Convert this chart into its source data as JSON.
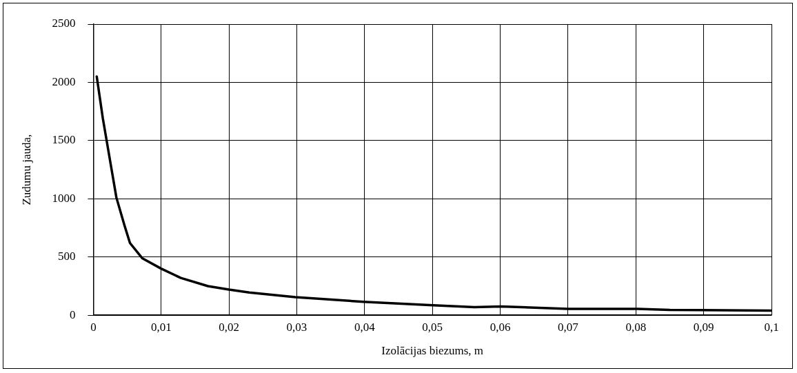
{
  "chart_data": {
    "type": "line",
    "xlabel": "Izolācijas biezums, m",
    "ylabel": "Zudumu jauda,",
    "series": [
      {
        "color": "#000000",
        "x": [
          0.0005,
          0.0014,
          0.0034,
          0.0046,
          0.0054,
          0.0072,
          0.01,
          0.0129,
          0.0169,
          0.02,
          0.023,
          0.0298,
          0.0398,
          0.0501,
          0.0562,
          0.0601,
          0.07,
          0.0803,
          0.085,
          0.1
        ],
        "values": [
          2050,
          1690,
          1010,
          770,
          620,
          490,
          400,
          320,
          250,
          220,
          195,
          155,
          115,
          85,
          70,
          75,
          55,
          55,
          45,
          40
        ]
      }
    ],
    "xlim": [
      0,
      0.1
    ],
    "xticks": [
      {
        "value": 0,
        "label": "0"
      },
      {
        "value": 0.01,
        "label": "0,01"
      },
      {
        "value": 0.02,
        "label": "0,02"
      },
      {
        "value": 0.03,
        "label": "0,03"
      },
      {
        "value": 0.04,
        "label": "0,04"
      },
      {
        "value": 0.05,
        "label": "0,05"
      },
      {
        "value": 0.06,
        "label": "0,06"
      },
      {
        "value": 0.07,
        "label": "0,07"
      },
      {
        "value": 0.08,
        "label": "0,08"
      },
      {
        "value": 0.09,
        "label": "0,09"
      },
      {
        "value": 0.1,
        "label": "0,1"
      }
    ],
    "ylim": [
      0,
      2500
    ],
    "yticks": [
      0,
      500,
      1000,
      1500,
      2000,
      2500
    ],
    "grid": true,
    "legend": false,
    "marker": "none",
    "line_style": "solid"
  }
}
